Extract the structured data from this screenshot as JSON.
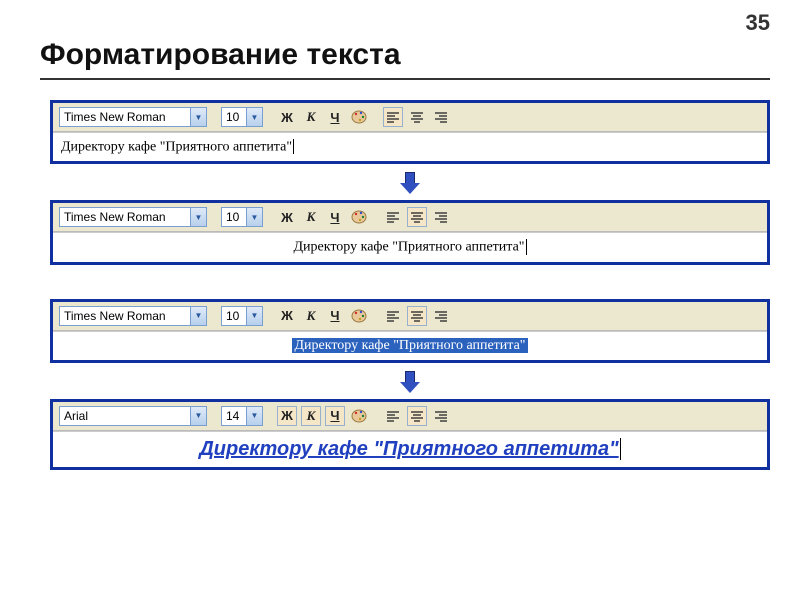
{
  "page_number": "35",
  "title": "Форматирование текста",
  "panels": [
    {
      "font": "Times New Roman",
      "size": "10",
      "bold": "Ж",
      "italic": "К",
      "underline": "Ч",
      "active_align": "left",
      "text_align": "left",
      "selected": false,
      "text": "Директору кафе \"Приятного аппетита\"",
      "text_font": "times",
      "show_cursor": true
    },
    {
      "font": "Times New Roman",
      "size": "10",
      "bold": "Ж",
      "italic": "К",
      "underline": "Ч",
      "active_align": "center",
      "text_align": "center",
      "selected": false,
      "text": "Директору кафе \"Приятного аппетита\"",
      "text_font": "times",
      "show_cursor": true
    },
    {
      "font": "Times New Roman",
      "size": "10",
      "bold": "Ж",
      "italic": "К",
      "underline": "Ч",
      "active_align": "center",
      "text_align": "center",
      "selected": true,
      "text": "Директору кафе \"Приятного аппетита\"",
      "text_font": "times",
      "show_cursor": false
    },
    {
      "font": "Arial",
      "size": "14",
      "bold": "Ж",
      "italic": "К",
      "underline": "Ч",
      "active_align": "center",
      "text_align": "center",
      "selected": false,
      "text": "Директору кафе \"Приятного аппетита\"",
      "text_font": "arial",
      "style_active": [
        "bold",
        "italic",
        "underline"
      ],
      "show_cursor": true
    }
  ],
  "colors": {
    "panel_border": "#1030a0",
    "toolbar_bg": "#ece8d0",
    "dropdown_border": "#789fcf",
    "selection_bg": "#2b62bd",
    "arial_text": "#2040c0",
    "arrow": "#3050c0"
  }
}
